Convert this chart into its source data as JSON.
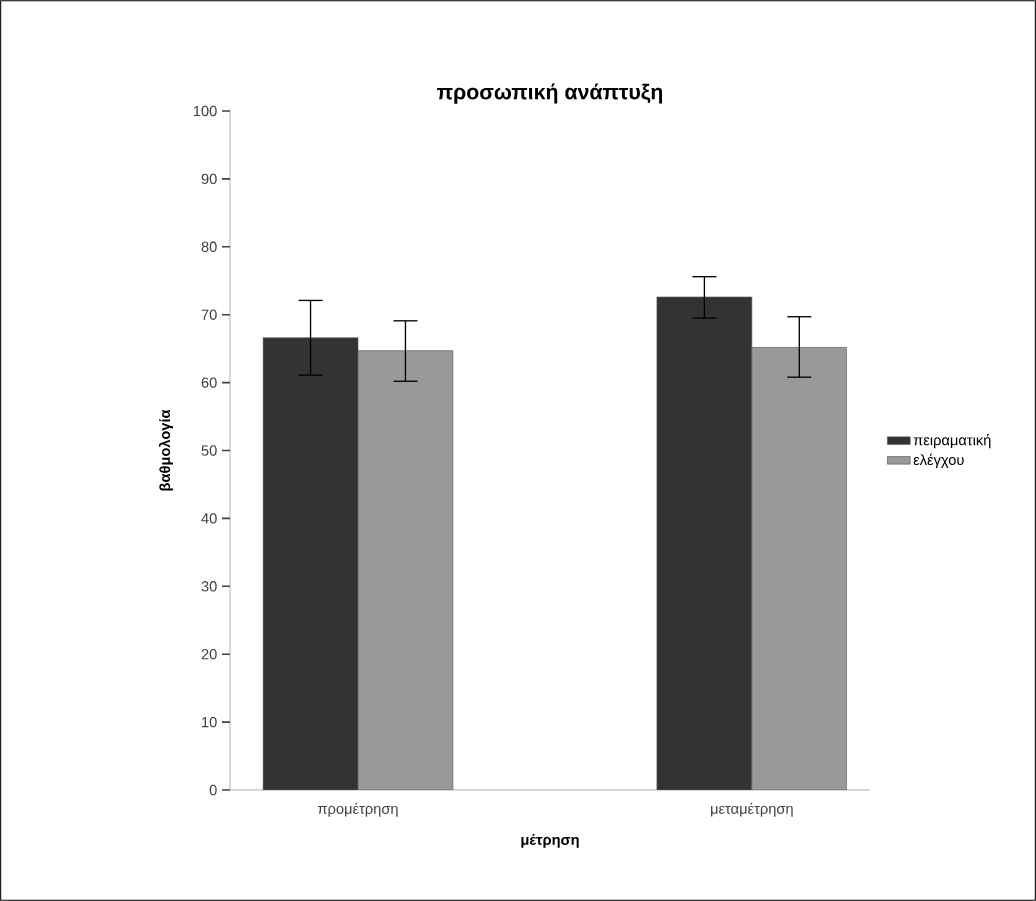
{
  "chart_data": {
    "type": "bar",
    "title": "προσωπική ανάπτυξη",
    "xlabel": "μέτρηση",
    "ylabel": "βαθμολογία",
    "categories": [
      "προμέτρηση",
      "μεταμέτρηση"
    ],
    "series": [
      {
        "name": "πειραματική",
        "color": "#333333",
        "values": [
          66.6,
          72.6
        ],
        "errors": [
          [
            61.1,
            72.1
          ],
          [
            69.5,
            75.6
          ]
        ]
      },
      {
        "name": "ελέγχου",
        "color": "#999999",
        "values": [
          64.7,
          65.2
        ],
        "errors": [
          [
            60.2,
            69.1
          ],
          [
            60.8,
            69.7
          ]
        ]
      }
    ],
    "ylim": [
      0,
      100
    ],
    "yticks": [
      0,
      10,
      20,
      30,
      40,
      50,
      60,
      70,
      80,
      90,
      100
    ],
    "legend": "right"
  }
}
